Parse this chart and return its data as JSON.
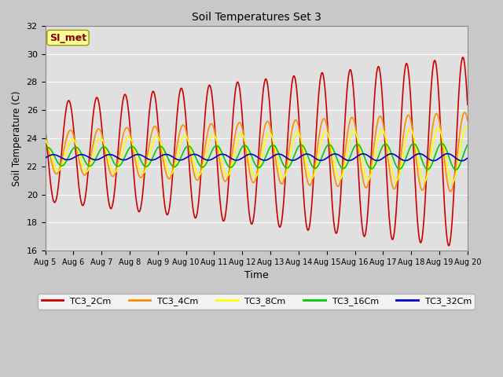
{
  "title": "Soil Temperatures Set 3",
  "xlabel": "Time",
  "ylabel": "Soil Temperature (C)",
  "ylim": [
    16,
    32
  ],
  "background_color": "#c8c8c8",
  "plot_bg_color": "#e0e0e0",
  "annotation_text": "SI_met",
  "annotation_color": "#8b0000",
  "annotation_bg": "#ffff99",
  "annotation_border": "#999900",
  "xtick_labels": [
    "Aug 5",
    "Aug 6",
    "Aug 7",
    "Aug 8",
    "Aug 9",
    "Aug 10",
    "Aug 11",
    "Aug 12",
    "Aug 13",
    "Aug 14",
    "Aug 15",
    "Aug 16",
    "Aug 17",
    "Aug 18",
    "Aug 19",
    "Aug 20"
  ],
  "ytick_values": [
    16,
    18,
    20,
    22,
    24,
    26,
    28,
    30,
    32
  ],
  "grid_color": "#ffffff",
  "legend_labels": [
    "TC3_2Cm",
    "TC3_4Cm",
    "TC3_8Cm",
    "TC3_16Cm",
    "TC3_32Cm"
  ],
  "legend_colors": [
    "#cc0000",
    "#ff8c00",
    "#ffff00",
    "#00cc00",
    "#0000cc"
  ],
  "peak_hour": 14.0,
  "mean_base_2cm": 23.0,
  "amp_base_2cm": 3.5,
  "amp_trend_2cm": 0.22,
  "lag_2cm": 0.0,
  "mean_base_4cm": 23.0,
  "amp_base_4cm": 1.5,
  "amp_trend_4cm": 0.09,
  "lag_4cm": 1.5,
  "mean_base_8cm": 22.8,
  "amp_base_8cm": 1.1,
  "amp_trend_8cm": 0.06,
  "lag_8cm": 3.0,
  "mean_base_16cm": 22.7,
  "amp_base_16cm": 0.65,
  "amp_trend_16cm": 0.02,
  "lag_16cm": 6.0,
  "mean_base_32cm": 22.65,
  "amp_base_32cm": 0.18,
  "amp_trend_32cm": 0.005,
  "lag_32cm": 11.0
}
